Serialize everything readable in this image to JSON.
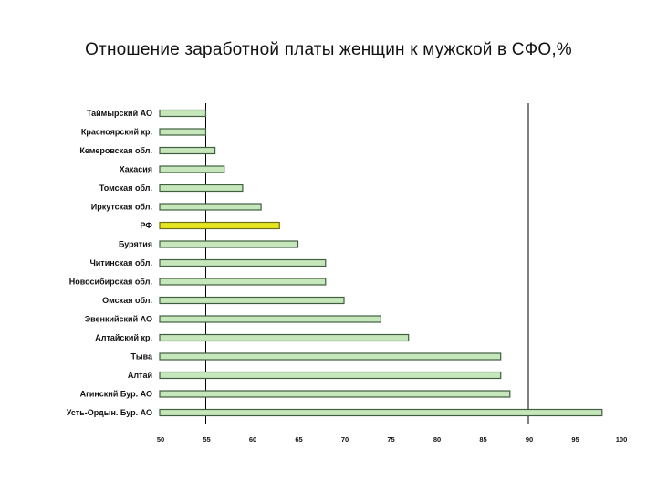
{
  "slide": {
    "title": "Отношение заработной платы женщин к мужской в СФО,%"
  },
  "chart_data": {
    "type": "bar",
    "orientation": "horizontal",
    "categories": [
      "Таймырский АО",
      "Красноярский кр.",
      "Кемеровская обл.",
      "Хакасия",
      "Томская обл.",
      "Иркутская обл.",
      "РФ",
      "Бурятия",
      "Читинская обл.",
      "Новосибирская обл.",
      "Омская обл.",
      "Эвенкийский АО",
      "Алтайский кр.",
      "Тыва",
      "Алтай",
      "Агинский Бур. АО",
      "Усть-Ордын. Бур. АО"
    ],
    "values": [
      55,
      55,
      56,
      57,
      59,
      61,
      63,
      65,
      68,
      68,
      70,
      74,
      77,
      87,
      87,
      88,
      98
    ],
    "highlight_category": "РФ",
    "colors": {
      "bar": "#c6e6bb",
      "bar_border": "#3f5f3f",
      "highlight": "#e6e61e",
      "highlight_border": "#6f6f1a",
      "reference_line": "#000000"
    },
    "xlim": [
      50,
      100
    ],
    "xticks": [
      "50",
      "55",
      "60",
      "65",
      "70",
      "75",
      "80",
      "85",
      "90",
      "95",
      "100"
    ],
    "reference_lines": [
      55,
      90
    ],
    "grid": false,
    "legend": false,
    "xlabel": "",
    "ylabel": ""
  }
}
